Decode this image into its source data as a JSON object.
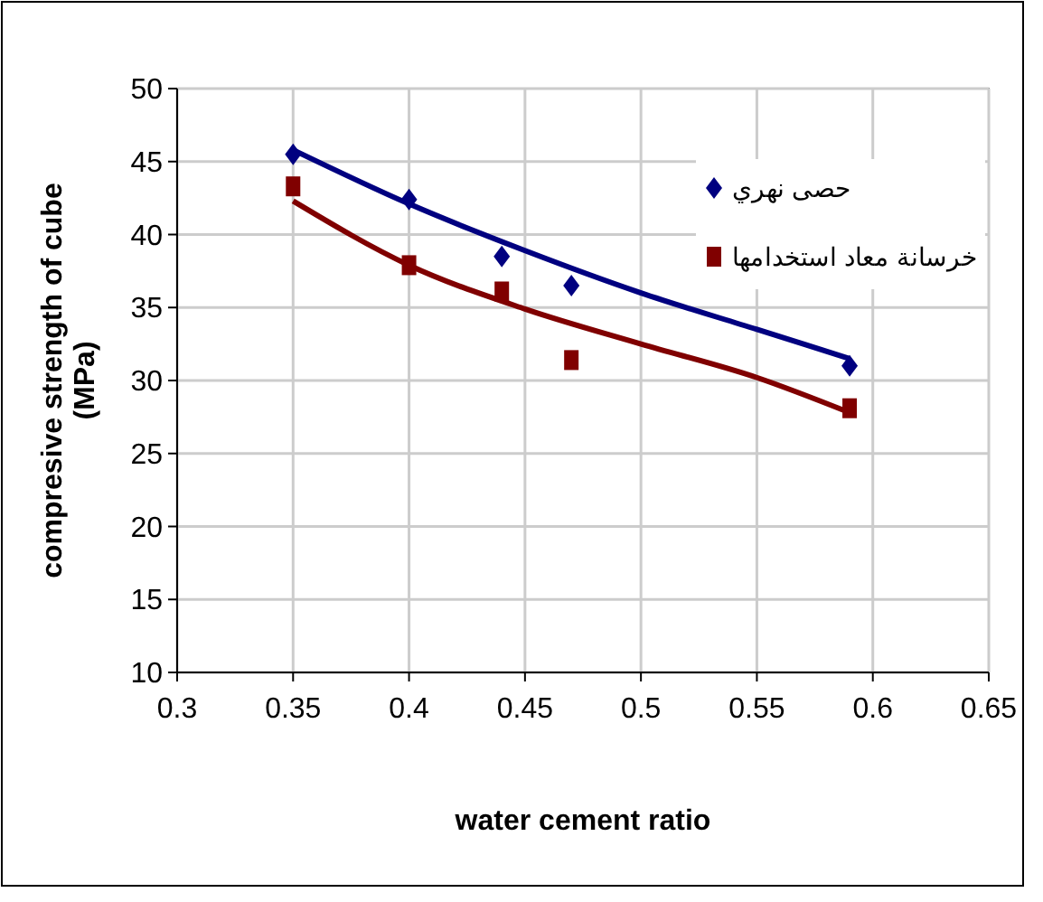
{
  "chart_data": {
    "type": "scatter",
    "xlabel": "water cement ratio",
    "ylabel": "compresive strength of cube (MPa)",
    "xlim": [
      0.3,
      0.65
    ],
    "xticks": [
      0.3,
      0.35,
      0.4,
      0.45,
      0.5,
      0.55,
      0.6,
      0.65
    ],
    "ylim": [
      10,
      50
    ],
    "yticks": [
      10,
      15,
      20,
      25,
      30,
      35,
      40,
      45,
      50
    ],
    "grid": true,
    "legend": "top right",
    "series": [
      {
        "name": "حصى نهري",
        "color": "#000080",
        "marker": "diamond",
        "x": [
          0.35,
          0.4,
          0.44,
          0.47,
          0.59
        ],
        "values": [
          45.5,
          42.4,
          38.5,
          36.5,
          31.0
        ]
      },
      {
        "name": "خرسانة معاد استخدامها",
        "color": "#800000",
        "marker": "square",
        "x": [
          0.35,
          0.4,
          0.44,
          0.47,
          0.59
        ],
        "values": [
          43.3,
          37.9,
          36.1,
          31.4,
          28.1
        ]
      },
      {
        "type": "line",
        "color": "#000080",
        "x": [
          0.35,
          0.4,
          0.45,
          0.5,
          0.55,
          0.59
        ],
        "values": [
          45.8,
          42.1,
          38.9,
          36.0,
          33.5,
          31.5
        ]
      },
      {
        "type": "line",
        "color": "#800000",
        "x": [
          0.35,
          0.4,
          0.45,
          0.5,
          0.55,
          0.59
        ],
        "values": [
          42.3,
          37.9,
          34.9,
          32.5,
          30.2,
          27.8
        ]
      }
    ]
  }
}
